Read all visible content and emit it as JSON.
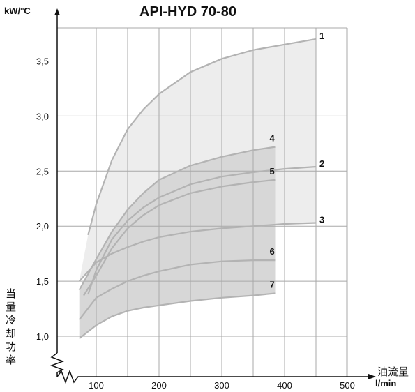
{
  "chart_data": {
    "type": "line",
    "title": "API-HYD 70-80",
    "ylabel_unit": "kW/°C",
    "ylabel": "当量冷却功率",
    "xlabel": "油流量",
    "xlabel_unit": "l/min",
    "xlim": [
      70,
      500
    ],
    "ylim": [
      0.9,
      3.8
    ],
    "x_ticks": [
      "100",
      "200",
      "300",
      "400",
      "500"
    ],
    "y_ticks": [
      "1,0",
      "1,5",
      "2,0",
      "2,5",
      "3,0",
      "3,5"
    ],
    "grid": true,
    "bands": [
      {
        "upper": "1",
        "lower": "3"
      },
      {
        "upper": "4",
        "lower": "7"
      }
    ],
    "series": [
      {
        "name": "1",
        "x": [
          87,
          100,
          125,
          150,
          175,
          200,
          250,
          300,
          350,
          400,
          450
        ],
        "y": [
          1.92,
          2.2,
          2.6,
          2.88,
          3.06,
          3.2,
          3.4,
          3.52,
          3.6,
          3.65,
          3.7
        ]
      },
      {
        "name": "2",
        "x": [
          87,
          100,
          125,
          150,
          175,
          200,
          250,
          300,
          350,
          400,
          450
        ],
        "y": [
          1.38,
          1.6,
          1.88,
          2.05,
          2.17,
          2.26,
          2.38,
          2.45,
          2.49,
          2.52,
          2.54
        ]
      },
      {
        "name": "3",
        "x": [
          73,
          100,
          125,
          150,
          175,
          200,
          250,
          300,
          350,
          400,
          450
        ],
        "y": [
          1.5,
          1.67,
          1.75,
          1.81,
          1.86,
          1.9,
          1.95,
          1.98,
          2.0,
          2.02,
          2.03
        ]
      },
      {
        "name": "4",
        "x": [
          73,
          100,
          125,
          150,
          175,
          200,
          250,
          300,
          350,
          385
        ],
        "y": [
          1.42,
          1.7,
          1.95,
          2.15,
          2.3,
          2.42,
          2.55,
          2.63,
          2.69,
          2.72
        ]
      },
      {
        "name": "5",
        "x": [
          80,
          100,
          125,
          150,
          175,
          200,
          250,
          300,
          350,
          385
        ],
        "y": [
          1.37,
          1.55,
          1.8,
          1.98,
          2.1,
          2.19,
          2.3,
          2.36,
          2.4,
          2.42
        ]
      },
      {
        "name": "6",
        "x": [
          73,
          100,
          125,
          150,
          175,
          200,
          250,
          300,
          350,
          385
        ],
        "y": [
          1.15,
          1.35,
          1.43,
          1.5,
          1.55,
          1.59,
          1.65,
          1.68,
          1.69,
          1.69
        ]
      },
      {
        "name": "7",
        "x": [
          73,
          100,
          125,
          150,
          175,
          200,
          250,
          300,
          350,
          385
        ],
        "y": [
          0.98,
          1.1,
          1.18,
          1.23,
          1.26,
          1.28,
          1.32,
          1.35,
          1.37,
          1.39
        ]
      }
    ]
  },
  "colors": {
    "curve": "#b3b3b3",
    "grid": "#a8a8a8",
    "band_outer": "#ededed",
    "band_inner": "#d7d7d7",
    "axis": "#111111"
  }
}
